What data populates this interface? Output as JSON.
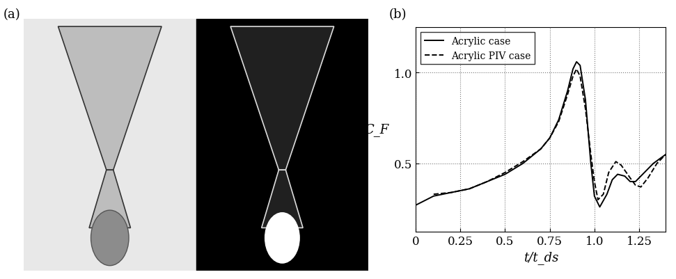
{
  "chart_data": {
    "type": "line",
    "panel_label": "(b)",
    "x_label": "t/t_ds",
    "y_label": "C_F",
    "xlim": [
      0,
      1.4
    ],
    "xticks": [
      0,
      0.25,
      0.5,
      0.75,
      1.0,
      1.25
    ],
    "ylim": [
      0.125,
      1.25
    ],
    "yticks": [
      0.5,
      1.0
    ],
    "grid": true,
    "legend": "upper left",
    "series": [
      {
        "name": "Acrylic case",
        "color": "#000000",
        "line_style": "solid",
        "x": [
          0,
          0.1,
          0.2,
          0.3,
          0.4,
          0.5,
          0.6,
          0.7,
          0.75,
          0.8,
          0.85,
          0.88,
          0.9,
          0.92,
          0.95,
          0.98,
          1.0,
          1.03,
          1.07,
          1.1,
          1.13,
          1.17,
          1.2,
          1.23,
          1.28,
          1.33,
          1.4
        ],
        "values": [
          0.27,
          0.32,
          0.34,
          0.36,
          0.4,
          0.44,
          0.5,
          0.58,
          0.64,
          0.74,
          0.9,
          1.02,
          1.06,
          1.04,
          0.85,
          0.5,
          0.32,
          0.26,
          0.33,
          0.41,
          0.44,
          0.43,
          0.4,
          0.4,
          0.45,
          0.5,
          0.55
        ]
      },
      {
        "name": "Acrylic PIV case",
        "color": "#000000",
        "line_style": "dashed",
        "x": [
          0.1,
          0.2,
          0.3,
          0.4,
          0.5,
          0.6,
          0.7,
          0.75,
          0.8,
          0.85,
          0.88,
          0.9,
          0.92,
          0.95,
          0.98,
          1.0,
          1.02,
          1.05,
          1.08,
          1.12,
          1.15,
          1.2,
          1.23,
          1.26,
          1.3,
          1.35,
          1.4
        ],
        "values": [
          0.33,
          0.34,
          0.36,
          0.4,
          0.45,
          0.51,
          0.58,
          0.64,
          0.73,
          0.88,
          0.98,
          1.02,
          0.98,
          0.8,
          0.55,
          0.4,
          0.3,
          0.33,
          0.45,
          0.51,
          0.49,
          0.42,
          0.38,
          0.37,
          0.42,
          0.5,
          0.55
        ]
      }
    ]
  },
  "photo_panel": {
    "label": "(a)"
  }
}
